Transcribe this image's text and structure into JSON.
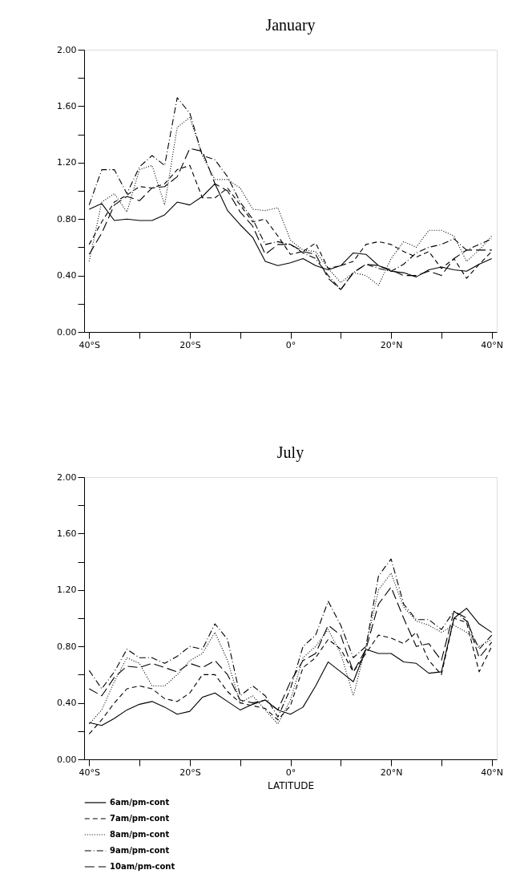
{
  "chart_data": [
    {
      "type": "line",
      "title": "January",
      "x": [
        -40,
        -37.5,
        -35,
        -32.5,
        -30,
        -27.5,
        -25,
        -22.5,
        -20,
        -17.5,
        -15,
        -12.5,
        -10,
        -7.5,
        -5,
        -2.5,
        0,
        2.5,
        5,
        7.5,
        10,
        12.5,
        15,
        17.5,
        20,
        22.5,
        25,
        27.5,
        30,
        32.5,
        35,
        37.5,
        40
      ],
      "xlim": [
        -41,
        41
      ],
      "xticks": [
        {
          "value": -40,
          "label": "40°S"
        },
        {
          "value": -30,
          "label": null
        },
        {
          "value": -20,
          "label": "20°S"
        },
        {
          "value": -10,
          "label": null
        },
        {
          "value": 0,
          "label": "0°"
        },
        {
          "value": 10,
          "label": null
        },
        {
          "value": 20,
          "label": "20°N"
        },
        {
          "value": 30,
          "label": null
        },
        {
          "value": 40,
          "label": "40°N"
        }
      ],
      "ylim": [
        0,
        2
      ],
      "yticks": [
        {
          "value": 0,
          "label": "0.00"
        },
        {
          "value": 0.2,
          "label": null
        },
        {
          "value": 0.4,
          "label": "0.40"
        },
        {
          "value": 0.6,
          "label": null
        },
        {
          "value": 0.8,
          "label": "0.80"
        },
        {
          "value": 1.0,
          "label": null
        },
        {
          "value": 1.2,
          "label": "1.20"
        },
        {
          "value": 1.4,
          "label": null
        },
        {
          "value": 1.6,
          "label": "1.60"
        },
        {
          "value": 1.8,
          "label": null
        },
        {
          "value": 2.0,
          "label": "2.00"
        }
      ],
      "series": [
        {
          "color": "#000000",
          "line_style": "solid",
          "values": [
            0.87,
            0.91,
            0.79,
            0.8,
            0.79,
            0.79,
            0.83,
            0.92,
            0.9,
            0.96,
            1.05,
            0.86,
            0.76,
            0.67,
            0.5,
            0.47,
            0.49,
            0.52,
            0.47,
            0.44,
            0.47,
            0.56,
            0.55,
            0.47,
            0.43,
            0.42,
            0.39,
            0.44,
            0.46,
            0.44,
            0.43,
            0.48,
            0.52
          ]
        },
        {
          "color": "#000000",
          "line_style": "dashed",
          "values": [
            0.62,
            0.78,
            0.92,
            0.97,
            1.03,
            1.02,
            1.05,
            1.15,
            1.18,
            0.95,
            0.95,
            1.02,
            0.9,
            0.78,
            0.8,
            0.68,
            0.55,
            0.57,
            0.63,
            0.45,
            0.47,
            0.5,
            0.62,
            0.64,
            0.62,
            0.57,
            0.53,
            0.57,
            0.45,
            0.52,
            0.38,
            0.48,
            0.57
          ]
        },
        {
          "color": "#000000",
          "line_style": "dotted",
          "values": [
            0.5,
            0.92,
            0.98,
            0.85,
            1.15,
            1.18,
            0.9,
            1.45,
            1.52,
            1.25,
            1.08,
            1.08,
            1.02,
            0.87,
            0.86,
            0.88,
            0.65,
            0.58,
            0.57,
            0.45,
            0.35,
            0.42,
            0.4,
            0.33,
            0.52,
            0.64,
            0.6,
            0.72,
            0.72,
            0.68,
            0.5,
            0.58,
            0.68
          ]
        },
        {
          "color": "#000000",
          "line_style": "dashdot",
          "values": [
            0.9,
            1.15,
            1.15,
            0.98,
            1.17,
            1.25,
            1.18,
            1.66,
            1.55,
            1.25,
            1.22,
            1.1,
            0.92,
            0.8,
            0.62,
            0.64,
            0.62,
            0.56,
            0.52,
            0.4,
            0.3,
            0.42,
            0.48,
            0.45,
            0.43,
            0.48,
            0.56,
            0.6,
            0.62,
            0.66,
            0.58,
            0.62,
            0.66
          ]
        },
        {
          "color": "#000000",
          "line_style": "longdash",
          "values": [
            0.55,
            0.7,
            0.9,
            0.96,
            0.93,
            1.02,
            1.03,
            1.1,
            1.3,
            1.28,
            1.05,
            1.0,
            0.85,
            0.75,
            0.55,
            0.62,
            0.62,
            0.57,
            0.55,
            0.38,
            0.3,
            0.42,
            0.48,
            0.47,
            0.44,
            0.4,
            0.4,
            0.43,
            0.4,
            0.52,
            0.58,
            0.58,
            0.58
          ]
        }
      ]
    },
    {
      "type": "line",
      "title": "July",
      "xlabel": "LATITUDE",
      "legend": "bottom left",
      "x": [
        -40,
        -37.5,
        -35,
        -32.5,
        -30,
        -27.5,
        -25,
        -22.5,
        -20,
        -17.5,
        -15,
        -12.5,
        -10,
        -7.5,
        -5,
        -2.5,
        0,
        2.5,
        5,
        7.5,
        10,
        12.5,
        15,
        17.5,
        20,
        22.5,
        25,
        27.5,
        30,
        32.5,
        35,
        37.5,
        40
      ],
      "xlim": [
        -41,
        41
      ],
      "xticks": [
        {
          "value": -40,
          "label": "40°S"
        },
        {
          "value": -30,
          "label": null
        },
        {
          "value": -20,
          "label": "20°S"
        },
        {
          "value": -10,
          "label": null
        },
        {
          "value": 0,
          "label": "0°"
        },
        {
          "value": 10,
          "label": null
        },
        {
          "value": 20,
          "label": "20°N"
        },
        {
          "value": 30,
          "label": null
        },
        {
          "value": 40,
          "label": "40°N"
        }
      ],
      "ylim": [
        0,
        2
      ],
      "yticks": [
        {
          "value": 0,
          "label": "0.00"
        },
        {
          "value": 0.2,
          "label": null
        },
        {
          "value": 0.4,
          "label": "0.40"
        },
        {
          "value": 0.6,
          "label": null
        },
        {
          "value": 0.8,
          "label": "0.80"
        },
        {
          "value": 1.0,
          "label": null
        },
        {
          "value": 1.2,
          "label": "1.20"
        },
        {
          "value": 1.4,
          "label": null
        },
        {
          "value": 1.6,
          "label": "1.60"
        },
        {
          "value": 1.8,
          "label": null
        },
        {
          "value": 2.0,
          "label": "2.00"
        }
      ],
      "series": [
        {
          "name": "6am/pm-cont",
          "color": "#000000",
          "line_style": "solid",
          "values": [
            0.26,
            0.24,
            0.29,
            0.35,
            0.39,
            0.41,
            0.37,
            0.32,
            0.34,
            0.44,
            0.47,
            0.41,
            0.35,
            0.39,
            0.42,
            0.35,
            0.32,
            0.37,
            0.52,
            0.69,
            0.62,
            0.55,
            0.78,
            0.75,
            0.75,
            0.69,
            0.68,
            0.61,
            0.62,
            1.0,
            1.07,
            0.96,
            0.9
          ]
        },
        {
          "name": "7am/pm-cont",
          "color": "#000000",
          "line_style": "dashed",
          "values": [
            0.18,
            0.28,
            0.4,
            0.5,
            0.52,
            0.5,
            0.43,
            0.41,
            0.47,
            0.6,
            0.6,
            0.48,
            0.4,
            0.38,
            0.36,
            0.28,
            0.38,
            0.65,
            0.72,
            0.85,
            0.78,
            0.62,
            0.75,
            0.88,
            0.86,
            0.82,
            0.9,
            0.7,
            0.6,
            1.0,
            0.97,
            0.62,
            0.8
          ]
        },
        {
          "name": "8am/pm-cont",
          "color": "#000000",
          "line_style": "dotted",
          "values": [
            0.25,
            0.35,
            0.55,
            0.72,
            0.68,
            0.52,
            0.52,
            0.6,
            0.7,
            0.75,
            0.9,
            0.7,
            0.4,
            0.45,
            0.35,
            0.25,
            0.42,
            0.72,
            0.8,
            0.92,
            0.75,
            0.45,
            0.8,
            1.2,
            1.32,
            1.08,
            0.98,
            0.95,
            0.9,
            0.95,
            0.9,
            0.8,
            0.85
          ]
        },
        {
          "name": "9am/pm-cont",
          "color": "#000000",
          "line_style": "dashdot",
          "values": [
            0.63,
            0.5,
            0.62,
            0.78,
            0.72,
            0.72,
            0.68,
            0.73,
            0.8,
            0.78,
            0.96,
            0.85,
            0.45,
            0.52,
            0.45,
            0.3,
            0.5,
            0.8,
            0.88,
            1.12,
            0.95,
            0.72,
            0.8,
            1.3,
            1.42,
            1.1,
            0.99,
            0.99,
            0.92,
            1.05,
            0.98,
            0.78,
            0.88
          ]
        },
        {
          "name": "10am/pm-cont",
          "color": "#000000",
          "line_style": "longdash",
          "values": [
            0.5,
            0.45,
            0.58,
            0.66,
            0.65,
            0.68,
            0.65,
            0.62,
            0.68,
            0.65,
            0.7,
            0.6,
            0.42,
            0.4,
            0.42,
            0.35,
            0.55,
            0.7,
            0.75,
            0.95,
            0.88,
            0.62,
            0.78,
            1.1,
            1.22,
            1.0,
            0.8,
            0.82,
            0.7,
            1.05,
            1.0,
            0.72,
            0.83
          ]
        }
      ]
    }
  ]
}
